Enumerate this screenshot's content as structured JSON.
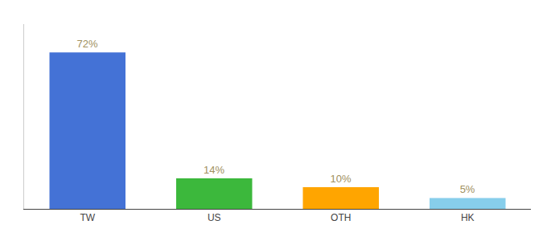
{
  "chart_data": {
    "type": "bar",
    "categories": [
      "TW",
      "US",
      "OTH",
      "HK"
    ],
    "values": [
      72,
      14,
      10,
      5
    ],
    "value_labels": [
      "72%",
      "14%",
      "10%",
      "5%"
    ],
    "colors": [
      "#4472D6",
      "#3CB83C",
      "#FFA500",
      "#87CEEB"
    ],
    "ylim": [
      0,
      85
    ],
    "data_labels": true,
    "tick_labels": "x",
    "grid": false
  }
}
